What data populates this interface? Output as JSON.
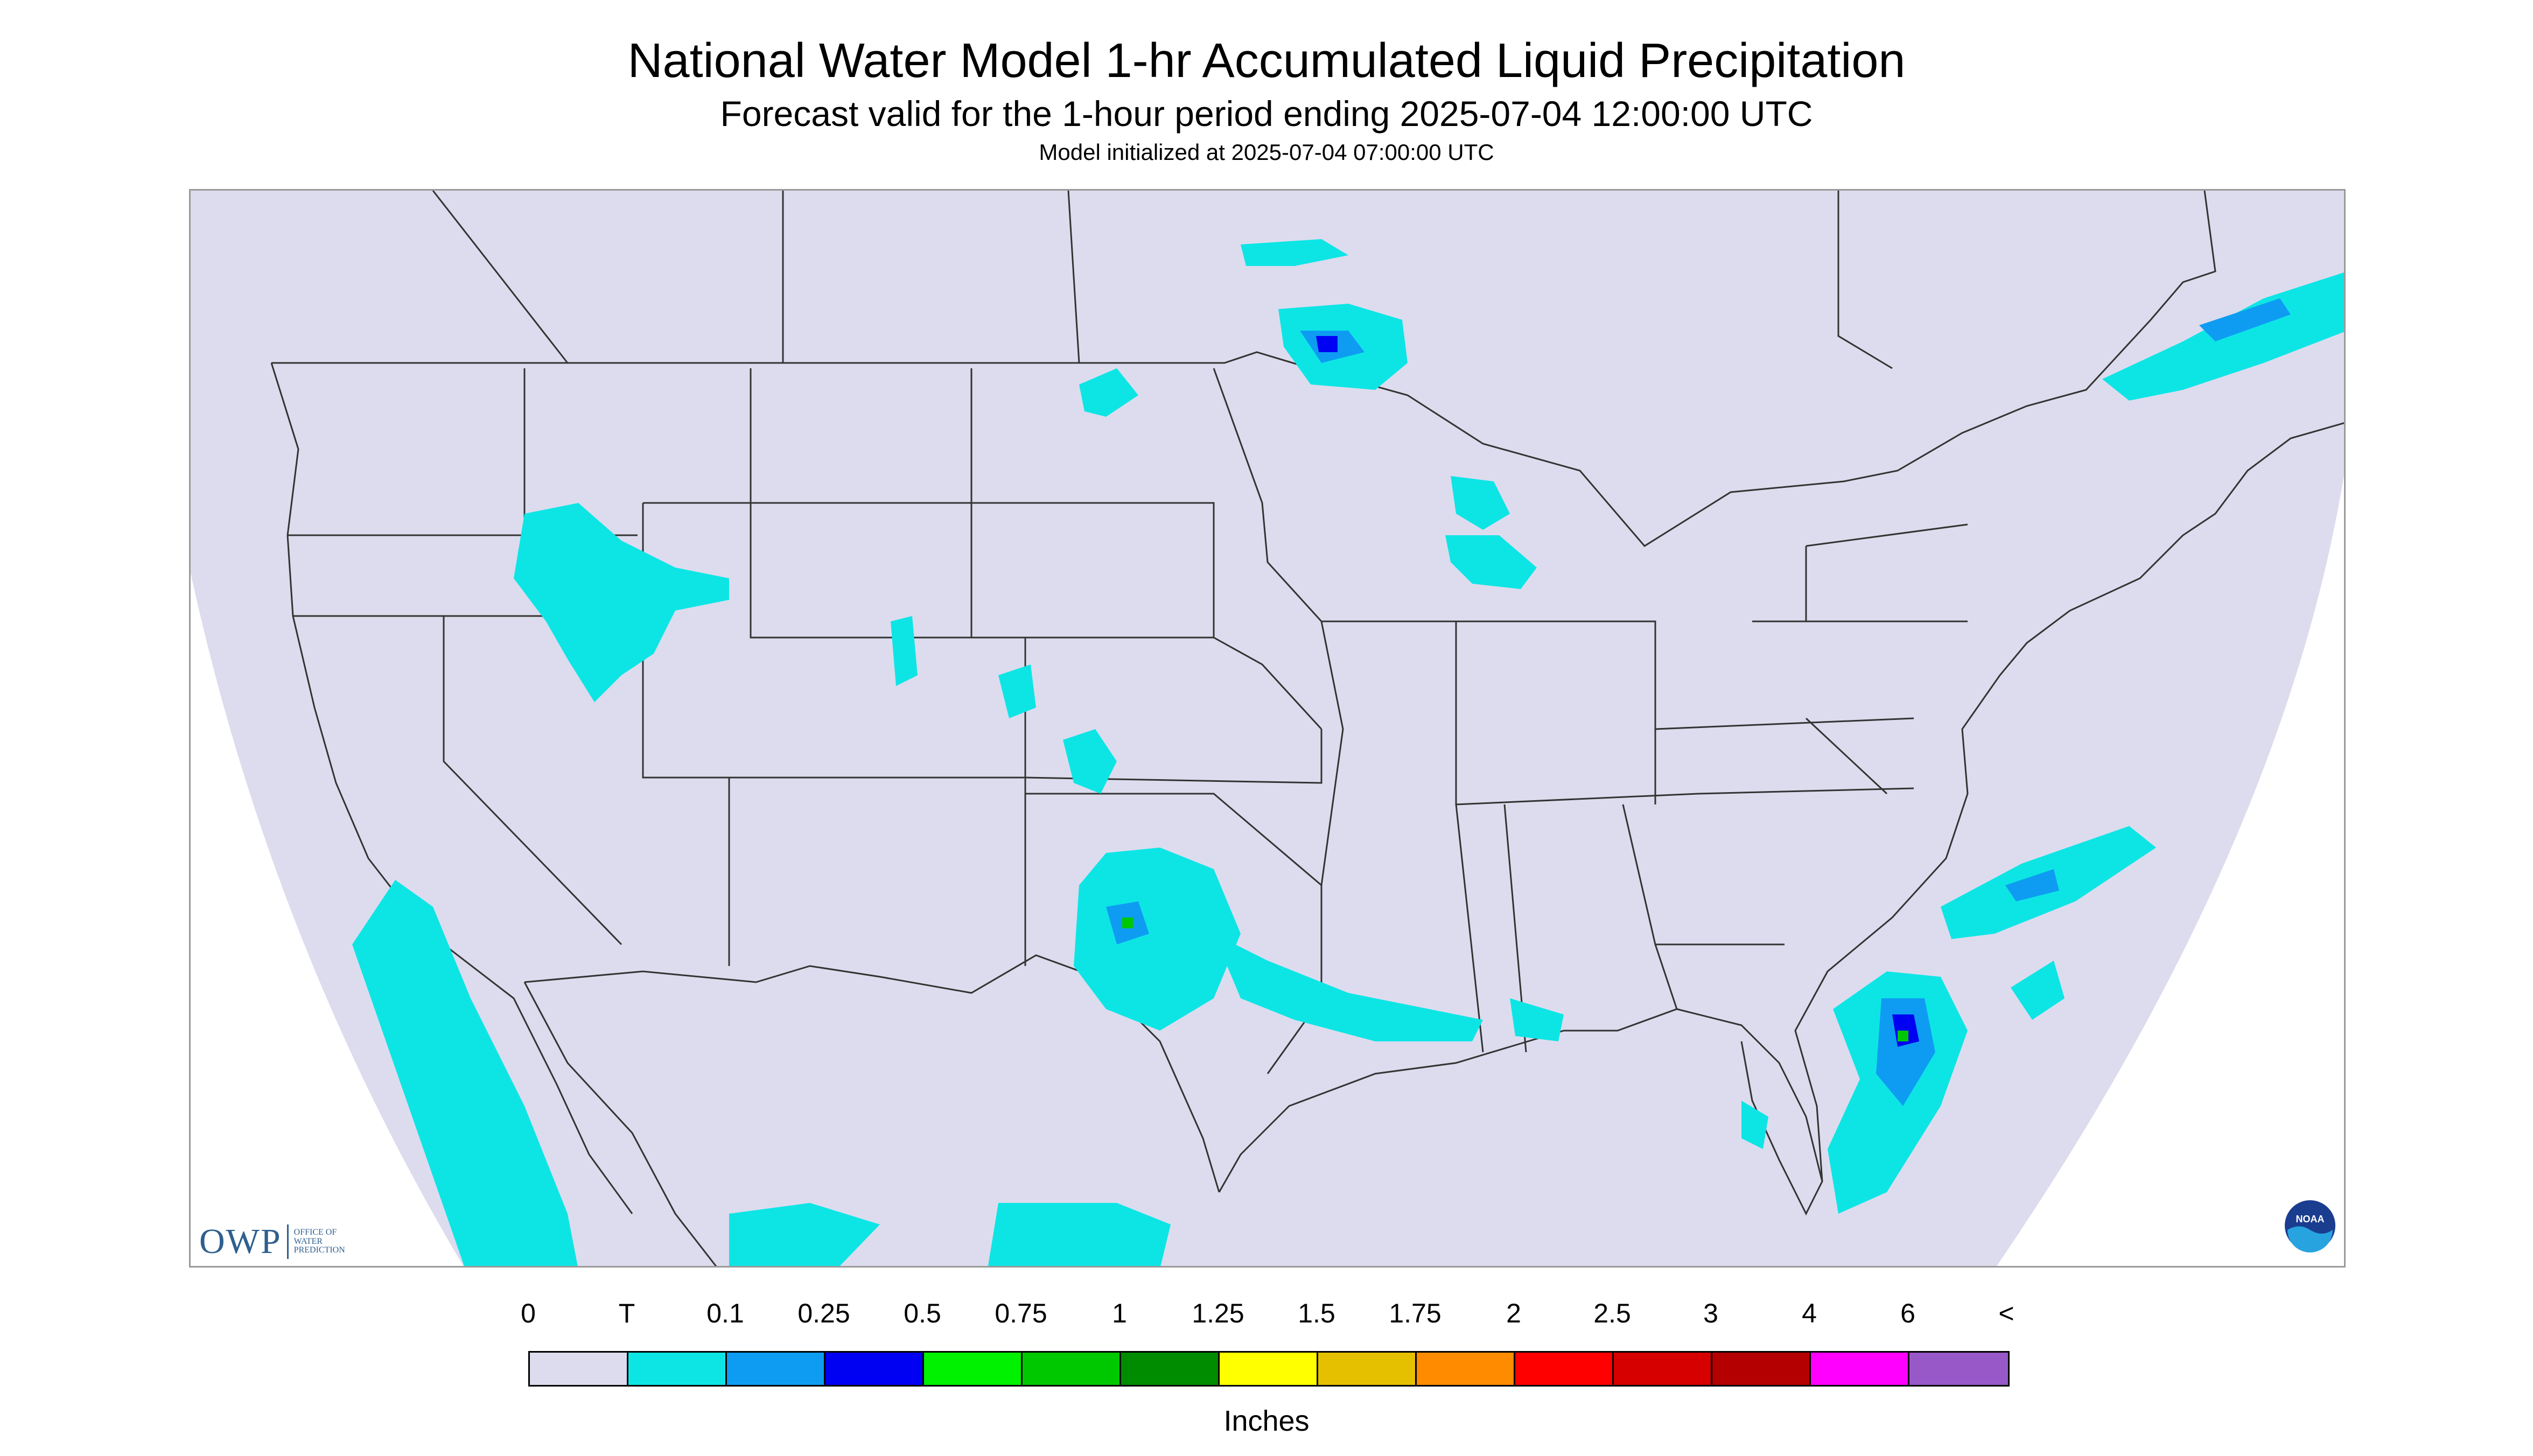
{
  "title": "National Water Model 1-hr Accumulated Liquid Precipitation",
  "subtitle": "Forecast valid for the 1-hour period ending 2025-07-04 12:00:00 UTC",
  "init_line": "Model initialized at 2025-07-04 07:00:00 UTC",
  "colors": {
    "background_fill": "#dcdcee",
    "border_line": "#222222",
    "trace": "#0de5e5"
  },
  "logos": {
    "owp_main": "OWP",
    "owp_sub": [
      "OFFICE OF",
      "WATER",
      "PREDICTION"
    ],
    "noaa_text": "NOAA"
  },
  "legend": {
    "labels": [
      "0",
      "T",
      "0.1",
      "0.25",
      "0.5",
      "0.75",
      "1",
      "1.25",
      "1.5",
      "1.75",
      "2",
      "2.5",
      "3",
      "4",
      "6",
      "<"
    ],
    "colors": [
      "#dcdcee",
      "#0de5e5",
      "#0e9cf2",
      "#0000f2",
      "#00f200",
      "#00c800",
      "#008c00",
      "#ffff00",
      "#e5c000",
      "#ff8c00",
      "#ff0000",
      "#d70000",
      "#b40000",
      "#ff00ff",
      "#9858c8"
    ],
    "units": "Inches"
  }
}
